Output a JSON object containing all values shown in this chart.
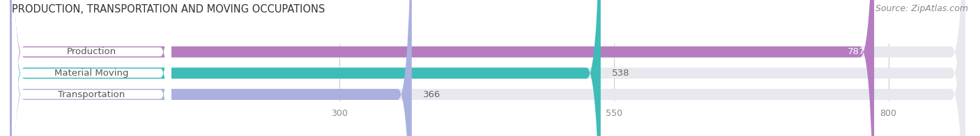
{
  "title": "PRODUCTION, TRANSPORTATION AND MOVING OCCUPATIONS",
  "source": "Source: ZipAtlas.com",
  "categories": [
    "Production",
    "Material Moving",
    "Transportation"
  ],
  "values": [
    787,
    538,
    366
  ],
  "bar_colors": [
    "#b57dc0",
    "#3dbcb8",
    "#aab0e0"
  ],
  "bar_bg_color": "#e8e8ef",
  "x_ticks": [
    300,
    550,
    800
  ],
  "xlim": [
    0,
    870
  ],
  "title_fontsize": 10.5,
  "label_fontsize": 9.5,
  "tick_fontsize": 9,
  "source_fontsize": 9,
  "background_color": "#ffffff",
  "label_text_color": "#555555",
  "value_text_color": "#ffffff",
  "tick_color": "#888888"
}
